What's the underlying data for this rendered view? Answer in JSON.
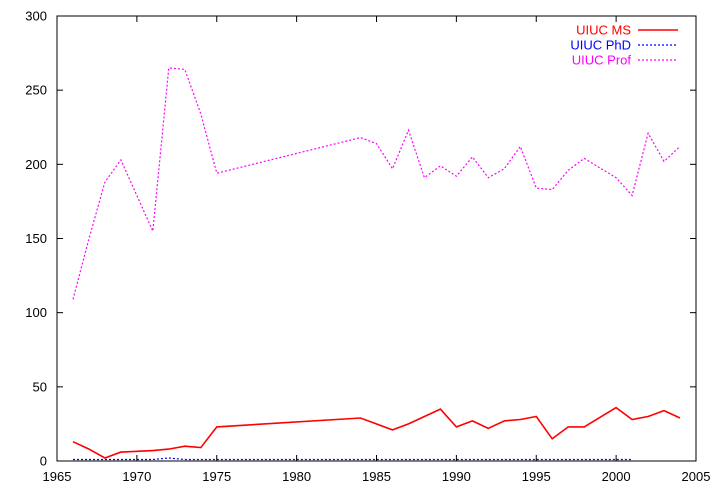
{
  "chart_data": {
    "type": "line",
    "title": "",
    "xlabel": "",
    "ylabel": "",
    "xlim": [
      1965,
      2005
    ],
    "ylim": [
      0,
      300
    ],
    "x_ticks": [
      1965,
      1970,
      1975,
      1980,
      1985,
      1990,
      1995,
      2000,
      2005
    ],
    "y_ticks": [
      0,
      50,
      100,
      150,
      200,
      250,
      300
    ],
    "grid": false,
    "legend_position": "top-right",
    "series": [
      {
        "name": "UIUC MS",
        "color": "#ff0000",
        "style": "solid",
        "x": [
          1966,
          1967,
          1968,
          1969,
          1971,
          1972,
          1973,
          1974,
          1975,
          1984,
          1986,
          1987,
          1989,
          1990,
          1991,
          1992,
          1993,
          1994,
          1995,
          1996,
          1997,
          1998,
          2000,
          2001,
          2002,
          2003,
          2004
        ],
        "y": [
          13,
          8,
          2,
          6,
          7,
          8,
          10,
          9,
          23,
          29,
          21,
          25,
          35,
          23,
          27,
          22,
          27,
          28,
          30,
          15,
          23,
          23,
          36,
          28,
          30,
          34,
          29
        ]
      },
      {
        "name": "UIUC PhD",
        "color": "#0000ff",
        "style": "dotted",
        "x": [
          1966,
          1968,
          1970,
          1971,
          1972,
          1973,
          1975,
          1980,
          1985,
          1990,
          1995,
          2000,
          2001
        ],
        "y": [
          1,
          1,
          1,
          1,
          2,
          1,
          1,
          1,
          1,
          1,
          1,
          1,
          1
        ]
      },
      {
        "name": "UIUC Prof",
        "color": "#ff00ff",
        "style": "dotted",
        "x": [
          1966,
          1967,
          1968,
          1969,
          1971,
          1972,
          1973,
          1974,
          1975,
          1984,
          1985,
          1986,
          1987,
          1988,
          1989,
          1990,
          1991,
          1992,
          1993,
          1994,
          1995,
          1996,
          1997,
          1998,
          2000,
          2001,
          2002,
          2003,
          2004
        ],
        "y": [
          109,
          150,
          188,
          203,
          155,
          265,
          264,
          234,
          194,
          218,
          214,
          197,
          223,
          191,
          199,
          192,
          205,
          191,
          197,
          212,
          184,
          183,
          196,
          204,
          191,
          179,
          221,
          202,
          212
        ]
      }
    ]
  }
}
